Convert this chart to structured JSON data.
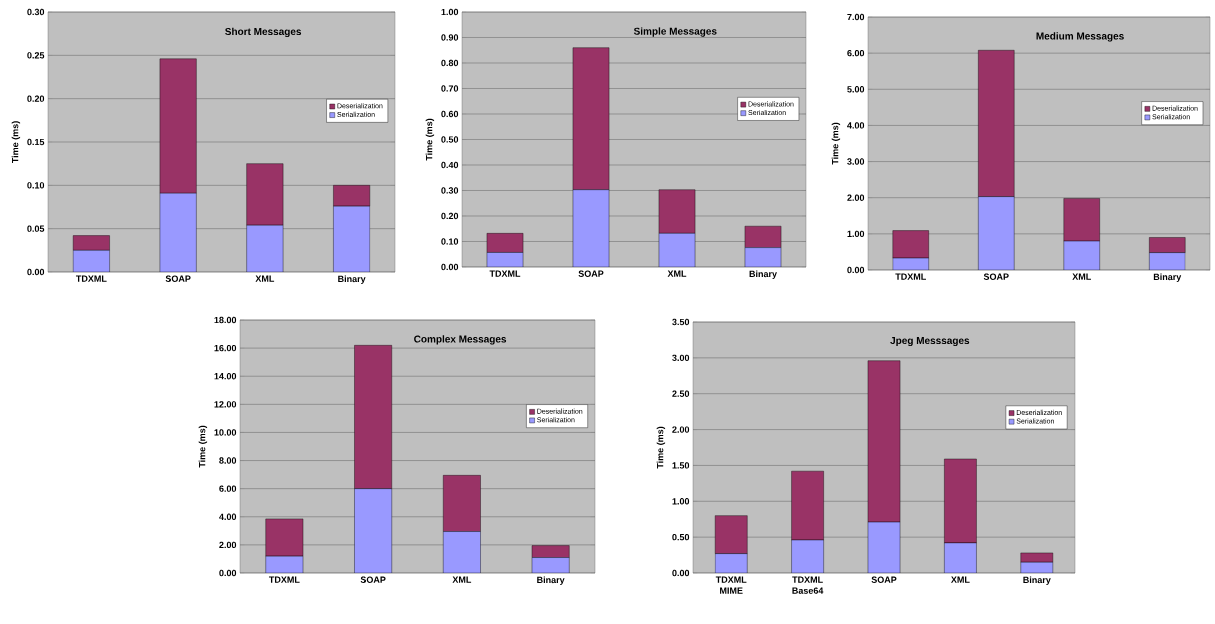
{
  "chart_data": [
    {
      "type": "bar",
      "stacked": true,
      "title": "Short Messages",
      "ylabel": "Time (ms)",
      "categories": [
        "TDXML",
        "SOAP",
        "XML",
        "Binary"
      ],
      "series": [
        {
          "name": "Serialization",
          "color": "#9999ff",
          "values": [
            0.025,
            0.091,
            0.054,
            0.076
          ]
        },
        {
          "name": "Deserialization",
          "color": "#993366",
          "values": [
            0.017,
            0.155,
            0.071,
            0.024
          ]
        }
      ],
      "ylim": [
        0,
        0.3
      ],
      "yticks": [
        {
          "value": 0,
          "label": "0.00"
        },
        {
          "value": 0.05,
          "label": "0.05"
        },
        {
          "value": 0.1,
          "label": "0.10"
        },
        {
          "value": 0.15,
          "label": "0.15"
        },
        {
          "value": 0.2,
          "label": "0.20"
        },
        {
          "value": 0.25,
          "label": "0.25"
        },
        {
          "value": 0.3,
          "label": "0.30"
        }
      ],
      "grid": "y",
      "legend": "right"
    },
    {
      "type": "bar",
      "stacked": true,
      "title": "Simple Messages",
      "ylabel": "Time (ms)",
      "categories": [
        "TDXML",
        "SOAP",
        "XML",
        "Binary"
      ],
      "series": [
        {
          "name": "Serialization",
          "color": "#9999ff",
          "values": [
            0.057,
            0.303,
            0.132,
            0.076
          ]
        },
        {
          "name": "Deserialization",
          "color": "#993366",
          "values": [
            0.075,
            0.557,
            0.171,
            0.084
          ]
        }
      ],
      "ylim": [
        0,
        1
      ],
      "yticks": [
        {
          "value": 0,
          "label": "0.00"
        },
        {
          "value": 0.1,
          "label": "0.10"
        },
        {
          "value": 0.2,
          "label": "0.20"
        },
        {
          "value": 0.3,
          "label": "0.30"
        },
        {
          "value": 0.4,
          "label": "0.40"
        },
        {
          "value": 0.5,
          "label": "0.50"
        },
        {
          "value": 0.6,
          "label": "0.60"
        },
        {
          "value": 0.7,
          "label": "0.70"
        },
        {
          "value": 0.8,
          "label": "0.80"
        },
        {
          "value": 0.9,
          "label": "0.90"
        },
        {
          "value": 1,
          "label": "1.00"
        }
      ],
      "grid": "y",
      "legend": "right"
    },
    {
      "type": "bar",
      "stacked": true,
      "title": "Medium Messages",
      "ylabel": "Time (ms)",
      "categories": [
        "TDXML",
        "SOAP",
        "XML",
        "Binary"
      ],
      "series": [
        {
          "name": "Serialization",
          "color": "#9999ff",
          "values": [
            0.33,
            2.03,
            0.8,
            0.48
          ]
        },
        {
          "name": "Deserialization",
          "color": "#993366",
          "values": [
            0.76,
            4.05,
            1.18,
            0.42
          ]
        }
      ],
      "ylim": [
        0,
        7
      ],
      "yticks": [
        {
          "value": 0,
          "label": "0.00"
        },
        {
          "value": 1,
          "label": "1.00"
        },
        {
          "value": 2,
          "label": "2.00"
        },
        {
          "value": 3,
          "label": "3.00"
        },
        {
          "value": 4,
          "label": "4.00"
        },
        {
          "value": 5,
          "label": "5.00"
        },
        {
          "value": 6,
          "label": "6.00"
        },
        {
          "value": 7,
          "label": "7.00"
        }
      ],
      "grid": "y",
      "legend": "right"
    },
    {
      "type": "bar",
      "stacked": true,
      "title": "Complex Messages",
      "ylabel": "Time (ms)",
      "categories": [
        "TDXML",
        "SOAP",
        "XML",
        "Binary"
      ],
      "series": [
        {
          "name": "Serialization",
          "color": "#9999ff",
          "values": [
            1.2,
            6.0,
            2.95,
            1.1
          ]
        },
        {
          "name": "Deserialization",
          "color": "#993366",
          "values": [
            2.65,
            10.2,
            4.0,
            0.85
          ]
        }
      ],
      "ylim": [
        0,
        18
      ],
      "yticks": [
        {
          "value": 0,
          "label": "0.00"
        },
        {
          "value": 2,
          "label": "2.00"
        },
        {
          "value": 4,
          "label": "4.00"
        },
        {
          "value": 6,
          "label": "6.00"
        },
        {
          "value": 8,
          "label": "8.00"
        },
        {
          "value": 10,
          "label": "10.00"
        },
        {
          "value": 12,
          "label": "12.00"
        },
        {
          "value": 14,
          "label": "14.00"
        },
        {
          "value": 16,
          "label": "16.00"
        },
        {
          "value": 18,
          "label": "18.00"
        }
      ],
      "grid": "y",
      "legend": "right"
    },
    {
      "type": "bar",
      "stacked": true,
      "title": "Jpeg Messsages",
      "ylabel": "Time (ms)",
      "categories": [
        "TDXML MIME",
        "TDXML Base64",
        "SOAP",
        "XML",
        "Binary"
      ],
      "series": [
        {
          "name": "Serialization",
          "color": "#9999ff",
          "values": [
            0.27,
            0.46,
            0.71,
            0.42,
            0.15
          ]
        },
        {
          "name": "Deserialization",
          "color": "#993366",
          "values": [
            0.53,
            0.96,
            2.25,
            1.17,
            0.13
          ]
        }
      ],
      "ylim": [
        0,
        3.5
      ],
      "yticks": [
        {
          "value": 0,
          "label": "0.00"
        },
        {
          "value": 0.5,
          "label": "0.50"
        },
        {
          "value": 1,
          "label": "1.00"
        },
        {
          "value": 1.5,
          "label": "1.50"
        },
        {
          "value": 2,
          "label": "2.00"
        },
        {
          "value": 2.5,
          "label": "2.50"
        },
        {
          "value": 3,
          "label": "3.00"
        },
        {
          "value": 3.5,
          "label": "3.50"
        }
      ],
      "grid": "y",
      "legend": "right"
    }
  ]
}
